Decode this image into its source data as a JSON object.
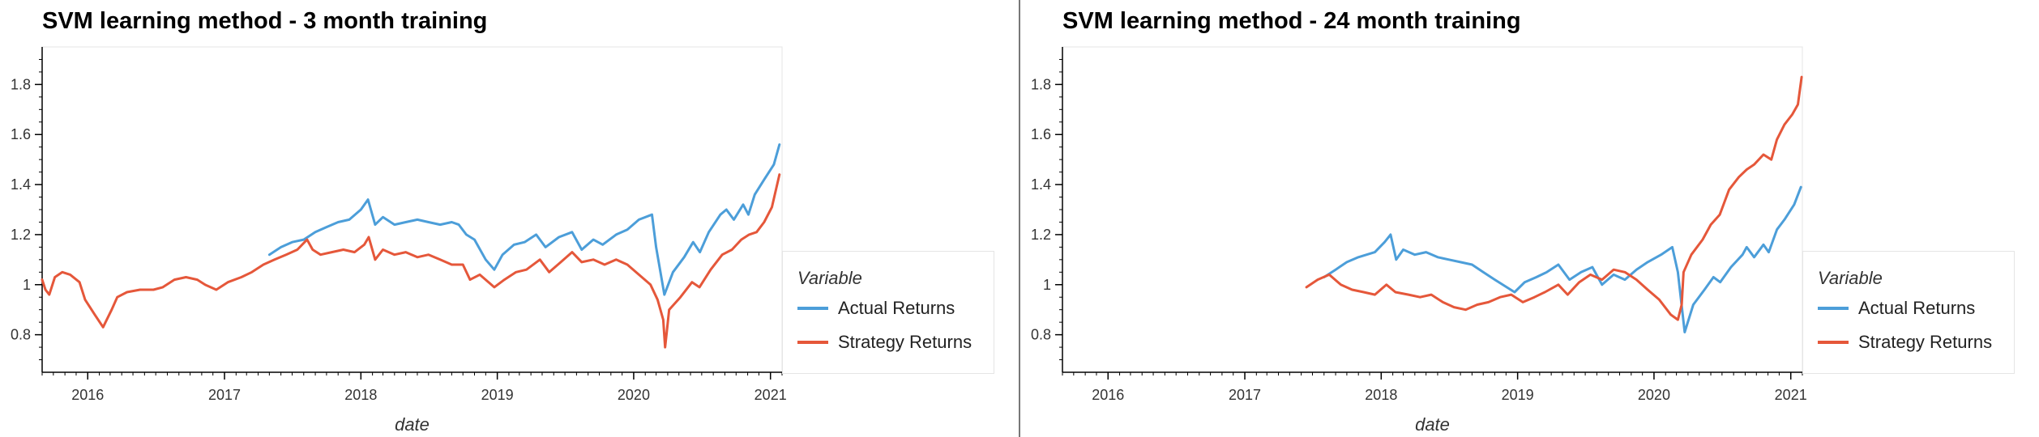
{
  "colors": {
    "actual": "#4c9ed9",
    "strategy": "#e5573a",
    "axis": "#000000",
    "frame": "#e5e5e5"
  },
  "chart_data": [
    {
      "type": "line",
      "title": "SVM learning method - 3 month training",
      "xlabel": "date",
      "ylabel": "",
      "legend_title": "Variable",
      "legend_position": "right",
      "grid": false,
      "xlim": [
        "2015-09-01",
        "2021-02-01"
      ],
      "ylim": [
        0.65,
        1.95
      ],
      "x_ticks": [
        "2016",
        "2017",
        "2018",
        "2019",
        "2020",
        "2021"
      ],
      "y_ticks": [
        "0.8",
        "1",
        "1.2",
        "1.4",
        "1.6",
        "1.8"
      ],
      "series": [
        {
          "name": "Actual Returns",
          "color": "#4c9ed9",
          "points": [
            [
              "2017-05-01",
              1.12
            ],
            [
              "2017-06-01",
              1.15
            ],
            [
              "2017-07-01",
              1.17
            ],
            [
              "2017-08-01",
              1.18
            ],
            [
              "2017-09-01",
              1.21
            ],
            [
              "2017-10-01",
              1.23
            ],
            [
              "2017-11-01",
              1.25
            ],
            [
              "2017-12-01",
              1.26
            ],
            [
              "2018-01-01",
              1.3
            ],
            [
              "2018-01-20",
              1.34
            ],
            [
              "2018-02-08",
              1.24
            ],
            [
              "2018-03-01",
              1.27
            ],
            [
              "2018-04-01",
              1.24
            ],
            [
              "2018-05-01",
              1.25
            ],
            [
              "2018-06-01",
              1.26
            ],
            [
              "2018-07-01",
              1.25
            ],
            [
              "2018-08-01",
              1.24
            ],
            [
              "2018-09-01",
              1.25
            ],
            [
              "2018-09-20",
              1.24
            ],
            [
              "2018-10-10",
              1.2
            ],
            [
              "2018-11-01",
              1.18
            ],
            [
              "2018-12-01",
              1.1
            ],
            [
              "2018-12-24",
              1.06
            ],
            [
              "2019-01-15",
              1.12
            ],
            [
              "2019-02-15",
              1.16
            ],
            [
              "2019-03-15",
              1.17
            ],
            [
              "2019-04-15",
              1.2
            ],
            [
              "2019-05-10",
              1.15
            ],
            [
              "2019-06-15",
              1.19
            ],
            [
              "2019-07-20",
              1.21
            ],
            [
              "2019-08-15",
              1.14
            ],
            [
              "2019-09-15",
              1.18
            ],
            [
              "2019-10-10",
              1.16
            ],
            [
              "2019-11-15",
              1.2
            ],
            [
              "2019-12-15",
              1.22
            ],
            [
              "2020-01-15",
              1.26
            ],
            [
              "2020-02-19",
              1.28
            ],
            [
              "2020-03-01",
              1.15
            ],
            [
              "2020-03-23",
              0.96
            ],
            [
              "2020-04-15",
              1.05
            ],
            [
              "2020-05-15",
              1.11
            ],
            [
              "2020-06-08",
              1.17
            ],
            [
              "2020-06-26",
              1.13
            ],
            [
              "2020-07-20",
              1.21
            ],
            [
              "2020-08-20",
              1.28
            ],
            [
              "2020-09-05",
              1.3
            ],
            [
              "2020-09-25",
              1.26
            ],
            [
              "2020-10-20",
              1.32
            ],
            [
              "2020-11-03",
              1.28
            ],
            [
              "2020-11-20",
              1.36
            ],
            [
              "2020-12-15",
              1.42
            ],
            [
              "2021-01-10",
              1.48
            ],
            [
              "2021-01-25",
              1.56
            ]
          ]
        },
        {
          "name": "Strategy Returns",
          "color": "#e5573a",
          "points": [
            [
              "2015-09-01",
              1.02
            ],
            [
              "2015-09-10",
              0.98
            ],
            [
              "2015-09-20",
              0.96
            ],
            [
              "2015-10-05",
              1.03
            ],
            [
              "2015-10-25",
              1.05
            ],
            [
              "2015-11-15",
              1.04
            ],
            [
              "2015-12-10",
              1.01
            ],
            [
              "2015-12-25",
              0.94
            ],
            [
              "2016-01-20",
              0.88
            ],
            [
              "2016-02-11",
              0.83
            ],
            [
              "2016-03-05",
              0.9
            ],
            [
              "2016-03-20",
              0.95
            ],
            [
              "2016-04-15",
              0.97
            ],
            [
              "2016-05-20",
              0.98
            ],
            [
              "2016-06-25",
              0.98
            ],
            [
              "2016-07-20",
              0.99
            ],
            [
              "2016-08-20",
              1.02
            ],
            [
              "2016-09-20",
              1.03
            ],
            [
              "2016-10-20",
              1.02
            ],
            [
              "2016-11-10",
              1.0
            ],
            [
              "2016-12-10",
              0.98
            ],
            [
              "2017-01-10",
              1.01
            ],
            [
              "2017-02-15",
              1.03
            ],
            [
              "2017-03-15",
              1.05
            ],
            [
              "2017-04-15",
              1.08
            ],
            [
              "2017-05-15",
              1.1
            ],
            [
              "2017-06-15",
              1.12
            ],
            [
              "2017-07-15",
              1.14
            ],
            [
              "2017-08-10",
              1.18
            ],
            [
              "2017-08-25",
              1.14
            ],
            [
              "2017-09-15",
              1.12
            ],
            [
              "2017-10-15",
              1.13
            ],
            [
              "2017-11-15",
              1.14
            ],
            [
              "2017-12-15",
              1.13
            ],
            [
              "2018-01-10",
              1.16
            ],
            [
              "2018-01-22",
              1.19
            ],
            [
              "2018-02-08",
              1.1
            ],
            [
              "2018-03-01",
              1.14
            ],
            [
              "2018-04-01",
              1.12
            ],
            [
              "2018-05-01",
              1.13
            ],
            [
              "2018-06-01",
              1.11
            ],
            [
              "2018-07-01",
              1.12
            ],
            [
              "2018-08-01",
              1.1
            ],
            [
              "2018-09-01",
              1.08
            ],
            [
              "2018-10-01",
              1.08
            ],
            [
              "2018-10-20",
              1.02
            ],
            [
              "2018-11-15",
              1.04
            ],
            [
              "2018-12-24",
              0.99
            ],
            [
              "2019-01-20",
              1.02
            ],
            [
              "2019-02-20",
              1.05
            ],
            [
              "2019-03-20",
              1.06
            ],
            [
              "2019-04-25",
              1.1
            ],
            [
              "2019-05-20",
              1.05
            ],
            [
              "2019-06-20",
              1.09
            ],
            [
              "2019-07-20",
              1.13
            ],
            [
              "2019-08-15",
              1.09
            ],
            [
              "2019-09-15",
              1.1
            ],
            [
              "2019-10-15",
              1.08
            ],
            [
              "2019-11-15",
              1.1
            ],
            [
              "2019-12-15",
              1.08
            ],
            [
              "2020-01-15",
              1.04
            ],
            [
              "2020-02-15",
              1.0
            ],
            [
              "2020-03-05",
              0.94
            ],
            [
              "2020-03-20",
              0.86
            ],
            [
              "2020-03-25",
              0.75
            ],
            [
              "2020-04-05",
              0.9
            ],
            [
              "2020-05-05",
              0.95
            ],
            [
              "2020-06-05",
              1.01
            ],
            [
              "2020-06-25",
              0.99
            ],
            [
              "2020-07-25",
              1.06
            ],
            [
              "2020-08-25",
              1.12
            ],
            [
              "2020-09-20",
              1.14
            ],
            [
              "2020-10-15",
              1.18
            ],
            [
              "2020-11-05",
              1.2
            ],
            [
              "2020-11-25",
              1.21
            ],
            [
              "2020-12-15",
              1.25
            ],
            [
              "2021-01-05",
              1.31
            ],
            [
              "2021-01-25",
              1.44
            ]
          ]
        }
      ]
    },
    {
      "type": "line",
      "title": "SVM learning method - 24 month training",
      "xlabel": "date",
      "ylabel": "",
      "legend_title": "Variable",
      "legend_position": "right",
      "grid": false,
      "xlim": [
        "2015-09-01",
        "2021-02-01"
      ],
      "ylim": [
        0.65,
        1.95
      ],
      "x_ticks": [
        "2016",
        "2017",
        "2018",
        "2019",
        "2020",
        "2021"
      ],
      "y_ticks": [
        "0.8",
        "1",
        "1.2",
        "1.4",
        "1.6",
        "1.8"
      ],
      "series": [
        {
          "name": "Actual Returns",
          "color": "#4c9ed9",
          "points": [
            [
              "2017-08-01",
              1.03
            ],
            [
              "2017-09-01",
              1.06
            ],
            [
              "2017-10-01",
              1.09
            ],
            [
              "2017-11-01",
              1.11
            ],
            [
              "2017-12-15",
              1.13
            ],
            [
              "2018-01-10",
              1.17
            ],
            [
              "2018-01-26",
              1.2
            ],
            [
              "2018-02-10",
              1.1
            ],
            [
              "2018-03-01",
              1.14
            ],
            [
              "2018-04-01",
              1.12
            ],
            [
              "2018-05-01",
              1.13
            ],
            [
              "2018-06-01",
              1.11
            ],
            [
              "2018-07-01",
              1.1
            ],
            [
              "2018-08-01",
              1.09
            ],
            [
              "2018-09-01",
              1.08
            ],
            [
              "2018-10-01",
              1.05
            ],
            [
              "2018-11-01",
              1.02
            ],
            [
              "2018-12-24",
              0.97
            ],
            [
              "2019-01-20",
              1.01
            ],
            [
              "2019-02-20",
              1.03
            ],
            [
              "2019-03-20",
              1.05
            ],
            [
              "2019-04-20",
              1.08
            ],
            [
              "2019-05-20",
              1.02
            ],
            [
              "2019-06-20",
              1.05
            ],
            [
              "2019-07-20",
              1.07
            ],
            [
              "2019-08-15",
              1.0
            ],
            [
              "2019-09-15",
              1.04
            ],
            [
              "2019-10-15",
              1.02
            ],
            [
              "2019-11-15",
              1.06
            ],
            [
              "2019-12-15",
              1.09
            ],
            [
              "2020-01-20",
              1.12
            ],
            [
              "2020-02-19",
              1.15
            ],
            [
              "2020-03-05",
              1.05
            ],
            [
              "2020-03-23",
              0.81
            ],
            [
              "2020-04-15",
              0.92
            ],
            [
              "2020-05-15",
              0.98
            ],
            [
              "2020-06-08",
              1.03
            ],
            [
              "2020-06-26",
              1.01
            ],
            [
              "2020-07-25",
              1.07
            ],
            [
              "2020-08-25",
              1.12
            ],
            [
              "2020-09-05",
              1.15
            ],
            [
              "2020-09-25",
              1.11
            ],
            [
              "2020-10-20",
              1.16
            ],
            [
              "2020-11-03",
              1.13
            ],
            [
              "2020-11-25",
              1.22
            ],
            [
              "2020-12-15",
              1.26
            ],
            [
              "2021-01-10",
              1.32
            ],
            [
              "2021-01-28",
              1.39
            ]
          ]
        },
        {
          "name": "Strategy Returns",
          "color": "#e5573a",
          "points": [
            [
              "2017-06-15",
              0.99
            ],
            [
              "2017-07-15",
              1.02
            ],
            [
              "2017-08-15",
              1.04
            ],
            [
              "2017-09-15",
              1.0
            ],
            [
              "2017-10-15",
              0.98
            ],
            [
              "2017-11-15",
              0.97
            ],
            [
              "2017-12-15",
              0.96
            ],
            [
              "2018-01-15",
              1.0
            ],
            [
              "2018-02-08",
              0.97
            ],
            [
              "2018-03-15",
              0.96
            ],
            [
              "2018-04-15",
              0.95
            ],
            [
              "2018-05-15",
              0.96
            ],
            [
              "2018-06-15",
              0.93
            ],
            [
              "2018-07-15",
              0.91
            ],
            [
              "2018-08-15",
              0.9
            ],
            [
              "2018-09-15",
              0.92
            ],
            [
              "2018-10-15",
              0.93
            ],
            [
              "2018-11-15",
              0.95
            ],
            [
              "2018-12-15",
              0.96
            ],
            [
              "2019-01-15",
              0.93
            ],
            [
              "2019-02-15",
              0.95
            ],
            [
              "2019-03-15",
              0.97
            ],
            [
              "2019-04-20",
              1.0
            ],
            [
              "2019-05-15",
              0.96
            ],
            [
              "2019-06-15",
              1.01
            ],
            [
              "2019-07-15",
              1.04
            ],
            [
              "2019-08-15",
              1.02
            ],
            [
              "2019-09-15",
              1.06
            ],
            [
              "2019-10-15",
              1.05
            ],
            [
              "2019-11-15",
              1.02
            ],
            [
              "2019-12-15",
              0.98
            ],
            [
              "2020-01-15",
              0.94
            ],
            [
              "2020-02-15",
              0.88
            ],
            [
              "2020-03-05",
              0.86
            ],
            [
              "2020-03-15",
              0.92
            ],
            [
              "2020-03-20",
              1.05
            ],
            [
              "2020-04-10",
              1.12
            ],
            [
              "2020-05-10",
              1.18
            ],
            [
              "2020-06-01",
              1.24
            ],
            [
              "2020-06-25",
              1.28
            ],
            [
              "2020-07-20",
              1.38
            ],
            [
              "2020-08-15",
              1.43
            ],
            [
              "2020-09-05",
              1.46
            ],
            [
              "2020-09-25",
              1.48
            ],
            [
              "2020-10-20",
              1.52
            ],
            [
              "2020-11-10",
              1.5
            ],
            [
              "2020-11-25",
              1.58
            ],
            [
              "2020-12-15",
              1.64
            ],
            [
              "2021-01-05",
              1.68
            ],
            [
              "2021-01-20",
              1.72
            ],
            [
              "2021-01-30",
              1.83
            ]
          ]
        }
      ]
    }
  ]
}
